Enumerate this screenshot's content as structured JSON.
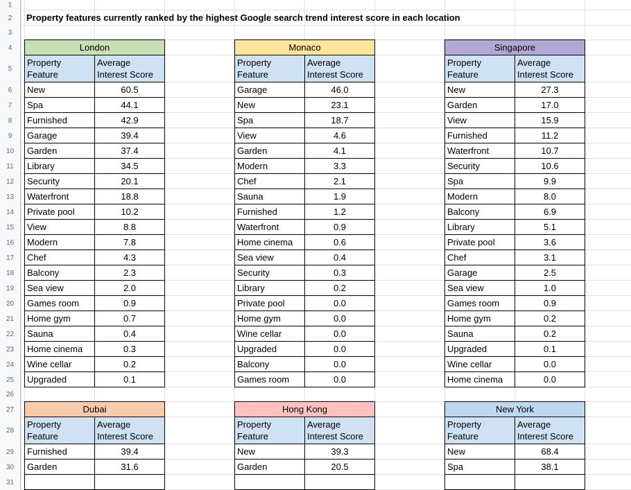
{
  "title": "Property features currently ranked by the highest Google search trend interest score in each location",
  "headers": {
    "feature": "Property Feature",
    "score": "Average Interest Score"
  },
  "row_numbers": [
    "1",
    "2",
    "3",
    "4",
    "5",
    "6",
    "7",
    "8",
    "9",
    "10",
    "11",
    "12",
    "13",
    "14",
    "15",
    "16",
    "17",
    "18",
    "19",
    "20",
    "21",
    "22",
    "23",
    "24",
    "25",
    "26",
    "27",
    "28",
    "29",
    "30",
    "31"
  ],
  "tables": [
    {
      "location": "London",
      "color": "#c6e0b4",
      "rows": [
        [
          "New",
          "60.5"
        ],
        [
          "Spa",
          "44.1"
        ],
        [
          "Furnished",
          "42.9"
        ],
        [
          "Garage",
          "39.4"
        ],
        [
          "Garden",
          "37.4"
        ],
        [
          "Library",
          "34.5"
        ],
        [
          "Security",
          "20.1"
        ],
        [
          "Waterfront",
          "18.8"
        ],
        [
          "Private pool",
          "10.2"
        ],
        [
          "View",
          "8.8"
        ],
        [
          "Modern",
          "7.8"
        ],
        [
          "Chef",
          "4.3"
        ],
        [
          "Balcony",
          "2.3"
        ],
        [
          "Sea view",
          "2.0"
        ],
        [
          "Games room",
          "0.9"
        ],
        [
          "Home gym",
          "0.7"
        ],
        [
          "Sauna",
          "0.4"
        ],
        [
          "Home cinema",
          "0.3"
        ],
        [
          "Wine cellar",
          "0.2"
        ],
        [
          "Upgraded",
          "0.1"
        ]
      ]
    },
    {
      "location": "Monaco",
      "color": "#ffe599",
      "rows": [
        [
          "Garage",
          "46.0"
        ],
        [
          "New",
          "23.1"
        ],
        [
          "Spa",
          "18.7"
        ],
        [
          "View",
          "4.6"
        ],
        [
          "Garden",
          "4.1"
        ],
        [
          "Modern",
          "3.3"
        ],
        [
          "Chef",
          "2.1"
        ],
        [
          "Sauna",
          "1.9"
        ],
        [
          "Furnished",
          "1.2"
        ],
        [
          "Waterfront",
          "0.9"
        ],
        [
          "Home cinema",
          "0.6"
        ],
        [
          "Sea view",
          "0.4"
        ],
        [
          "Security",
          "0.3"
        ],
        [
          "Library",
          "0.2"
        ],
        [
          "Private pool",
          "0.0"
        ],
        [
          "Home gym",
          "0.0"
        ],
        [
          "Wine cellar",
          "0.0"
        ],
        [
          "Upgraded",
          "0.0"
        ],
        [
          "Balcony",
          "0.0"
        ],
        [
          "Games room",
          "0.0"
        ]
      ]
    },
    {
      "location": "Singapore",
      "color": "#b4a7d6",
      "rows": [
        [
          "New",
          "27.3"
        ],
        [
          "Garden",
          "17.0"
        ],
        [
          "View",
          "15.9"
        ],
        [
          "Furnished",
          "11.2"
        ],
        [
          "Waterfront",
          "10.7"
        ],
        [
          "Security",
          "10.6"
        ],
        [
          "Spa",
          "9.9"
        ],
        [
          "Modern",
          "8.0"
        ],
        [
          "Balcony",
          "6.9"
        ],
        [
          "Library",
          "5.1"
        ],
        [
          "Private pool",
          "3.6"
        ],
        [
          "Chef",
          "3.1"
        ],
        [
          "Garage",
          "2.5"
        ],
        [
          "Sea view",
          "1.0"
        ],
        [
          "Games room",
          "0.9"
        ],
        [
          "Home gym",
          "0.2"
        ],
        [
          "Sauna",
          "0.2"
        ],
        [
          "Upgraded",
          "0.1"
        ],
        [
          "Wine cellar",
          "0.0"
        ],
        [
          "Home cinema",
          "0.0"
        ]
      ]
    },
    {
      "location": "Dubai",
      "color": "#f8cbad",
      "rows": [
        [
          "Furnished",
          "39.4"
        ],
        [
          "Garden",
          "31.6"
        ]
      ]
    },
    {
      "location": "Hong Kong",
      "color": "#ffc0c0",
      "rows": [
        [
          "New",
          "39.3"
        ],
        [
          "Garden",
          "20.5"
        ]
      ]
    },
    {
      "location": "New York",
      "color": "#bdd7ee",
      "rows": [
        [
          "New",
          "68.4"
        ],
        [
          "Spa",
          "38.1"
        ]
      ]
    }
  ]
}
